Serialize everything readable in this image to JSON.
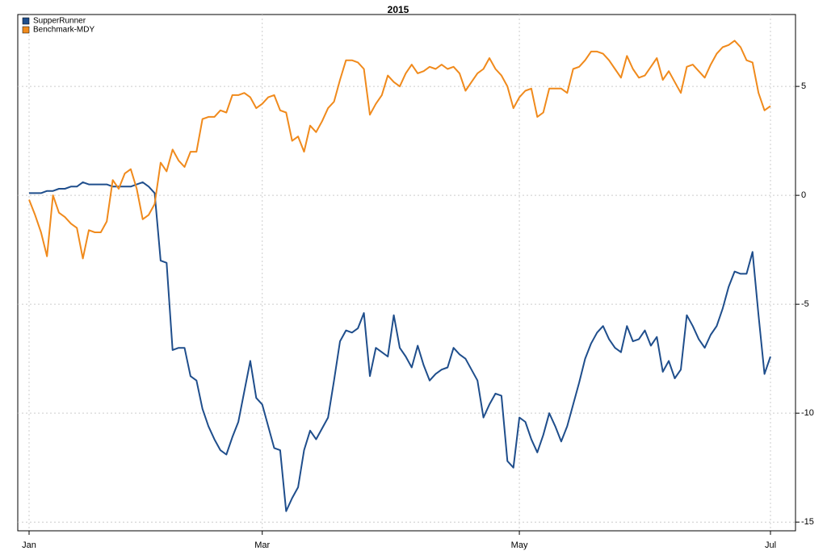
{
  "chart_data": {
    "type": "line",
    "title": "2015",
    "categories": [
      "Jan",
      null,
      null,
      null,
      null,
      null,
      null,
      null,
      null,
      null,
      null,
      null,
      null,
      null,
      null,
      null,
      null,
      null,
      null,
      null,
      null,
      null,
      null,
      null,
      null,
      null,
      null,
      null,
      null,
      null,
      null,
      null,
      null,
      null,
      null,
      null,
      null,
      null,
      null,
      "Mar",
      null,
      null,
      null,
      null,
      null,
      null,
      null,
      null,
      null,
      null,
      null,
      null,
      null,
      null,
      null,
      null,
      null,
      null,
      null,
      null,
      null,
      null,
      null,
      null,
      null,
      null,
      null,
      null,
      null,
      null,
      null,
      null,
      null,
      null,
      null,
      null,
      null,
      null,
      null,
      null,
      null,
      null,
      "May",
      null,
      null,
      null,
      null,
      null,
      null,
      null,
      null,
      null,
      null,
      null,
      null,
      null,
      null,
      null,
      null,
      null,
      null,
      null,
      null,
      null,
      null,
      null,
      null,
      null,
      null,
      null,
      null,
      null,
      null,
      null,
      null,
      null,
      null,
      null,
      null,
      null,
      null,
      null,
      null,
      null,
      "Jul"
    ],
    "series": [
      {
        "name": "SupperRunner",
        "color": "#1f4e8c",
        "values": [
          0.1,
          0.1,
          0.1,
          0.2,
          0.2,
          0.3,
          0.3,
          0.4,
          0.4,
          0.6,
          0.5,
          0.5,
          0.5,
          0.5,
          0.4,
          0.4,
          0.4,
          0.4,
          0.5,
          0.6,
          0.4,
          0.1,
          -3,
          -3.1,
          -7.1,
          -7.0,
          -7.0,
          -8.3,
          -8.5,
          -9.8,
          -10.6,
          -11.2,
          -11.7,
          -11.9,
          -11.1,
          -10.4,
          -9.0,
          -7.6,
          -9.3,
          -9.6,
          -10.6,
          -11.6,
          -11.7,
          -14.5,
          -13.9,
          -13.4,
          -11.7,
          -10.8,
          -11.2,
          -10.7,
          -10.2,
          -8.5,
          -6.7,
          -6.2,
          -6.3,
          -6.1,
          -5.4,
          -8.3,
          -7.0,
          -7.2,
          -7.4,
          -5.5,
          -7.0,
          -7.4,
          -7.9,
          -6.9,
          -7.8,
          -8.5,
          -8.2,
          -8.0,
          -7.9,
          -7.0,
          -7.3,
          -7.5,
          -8.0,
          -8.5,
          -10.2,
          -9.6,
          -9.1,
          -9.2,
          -12.2,
          -12.5,
          -10.2,
          -10.4,
          -11.2,
          -11.8,
          -11.0,
          -10.0,
          -10.6,
          -11.3,
          -10.6,
          -9.6,
          -8.6,
          -7.5,
          -6.8,
          -6.3,
          -6.0,
          -6.6,
          -7.0,
          -7.2,
          -6.0,
          -6.7,
          -6.6,
          -6.2,
          -6.9,
          -6.5,
          -8.1,
          -7.6,
          -8.4,
          -8.0,
          -5.5,
          -6.0,
          -6.6,
          -7.0,
          -6.4,
          -6.0,
          -5.2,
          -4.2,
          -3.5,
          -3.6,
          -3.6,
          -2.6,
          -5.5,
          -8.2,
          -7.4
        ]
      },
      {
        "name": "Benchmark-MDY",
        "color": "#f08a1c",
        "values": [
          -0.2,
          -0.9,
          -1.7,
          -2.8,
          0.0,
          -0.8,
          -1.0,
          -1.3,
          -1.5,
          -2.9,
          -1.6,
          -1.7,
          -1.7,
          -1.2,
          0.7,
          0.3,
          1.0,
          1.2,
          0.3,
          -1.1,
          -0.9,
          -0.4,
          1.5,
          1.1,
          2.1,
          1.6,
          1.3,
          2.0,
          2.0,
          3.5,
          3.6,
          3.6,
          3.9,
          3.8,
          4.6,
          4.6,
          4.7,
          4.5,
          4.0,
          4.2,
          4.5,
          4.6,
          3.9,
          3.8,
          2.5,
          2.7,
          2.0,
          3.2,
          2.9,
          3.4,
          4.0,
          4.3,
          5.3,
          6.2,
          6.2,
          6.1,
          5.8,
          3.7,
          4.2,
          4.6,
          5.5,
          5.2,
          5.0,
          5.6,
          6.0,
          5.6,
          5.7,
          5.9,
          5.8,
          6.0,
          5.8,
          5.9,
          5.6,
          4.8,
          5.2,
          5.6,
          5.8,
          6.3,
          5.8,
          5.5,
          5.0,
          4.0,
          4.5,
          4.8,
          4.9,
          3.6,
          3.8,
          4.9,
          4.9,
          4.9,
          4.7,
          5.8,
          5.9,
          6.2,
          6.6,
          6.6,
          6.5,
          6.2,
          5.8,
          5.4,
          6.4,
          5.8,
          5.4,
          5.5,
          5.9,
          6.3,
          5.3,
          5.7,
          5.2,
          4.7,
          5.9,
          6.0,
          5.7,
          5.4,
          6.0,
          6.5,
          6.8,
          6.9,
          7.1,
          6.8,
          6.2,
          6.1,
          4.7,
          3.9,
          4.1
        ]
      }
    ],
    "ylim": [
      -15.4,
      8.3
    ],
    "yticks": [
      -15,
      -10,
      -5,
      0,
      5
    ],
    "grid": true,
    "legend": "top-left"
  }
}
